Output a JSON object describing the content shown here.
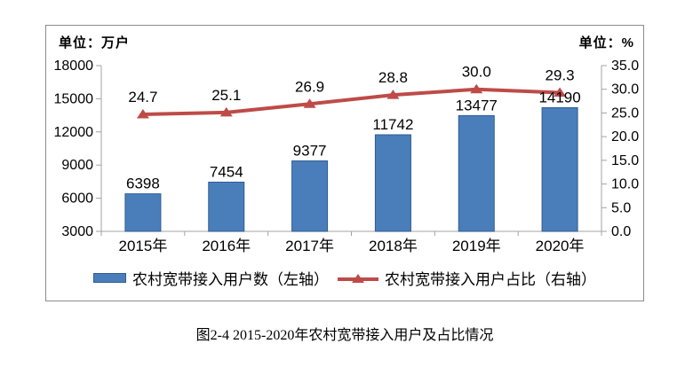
{
  "caption": "图2-4  2015-2020年农村宽带接入用户及占比情况",
  "chart_data": {
    "type": "bar",
    "subtype": "bar+line dual axis",
    "categories": [
      "2015年",
      "2016年",
      "2017年",
      "2018年",
      "2019年",
      "2020年"
    ],
    "series": [
      {
        "name": "农村宽带接入用户数（左轴）",
        "type": "bar",
        "axis": "left",
        "values": [
          6398,
          7454,
          9377,
          11742,
          13477,
          14190
        ],
        "color": "#4A7EBB",
        "border_color": "#2E5C93"
      },
      {
        "name": "农村宽带接入用户占比（右轴）",
        "type": "line",
        "axis": "right",
        "values": [
          24.7,
          25.1,
          26.9,
          28.8,
          30.0,
          29.3
        ],
        "color": "#BE4B48",
        "marker": "triangle-up"
      }
    ],
    "left_axis": {
      "title": "单位：万户",
      "min": 3000,
      "max": 18000,
      "step": 3000
    },
    "right_axis": {
      "title": "单位：%",
      "min": 0,
      "max": 35,
      "step": 5,
      "decimals": 1
    },
    "legend_position": "bottom",
    "grid": false,
    "axis_color": "#A3A3A3",
    "text_color": "#000000"
  }
}
